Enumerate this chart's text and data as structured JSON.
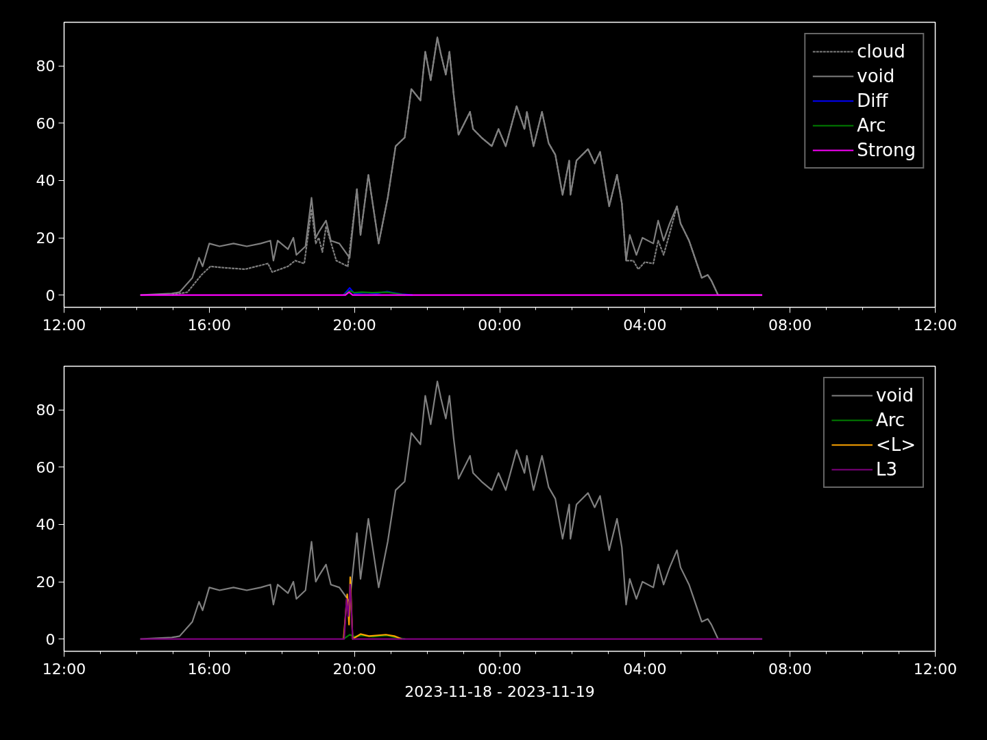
{
  "chart_data": [
    {
      "type": "line",
      "xlim": [
        "2023-11-18T12:00",
        "2023-11-19T12:00"
      ],
      "ylim": [
        -4.3,
        95.3
      ],
      "xticks": [
        {
          "value": "2023-11-18T12:00",
          "label": "12:00"
        },
        {
          "value": "2023-11-18T16:00",
          "label": "16:00"
        },
        {
          "value": "2023-11-18T20:00",
          "label": "20:00"
        },
        {
          "value": "2023-11-19T00:00",
          "label": "00:00"
        },
        {
          "value": "2023-11-19T04:00",
          "label": "04:00"
        },
        {
          "value": "2023-11-19T08:00",
          "label": "08:00"
        },
        {
          "value": "2023-11-19T12:00",
          "label": "12:00"
        }
      ],
      "yticks": [
        0,
        20,
        40,
        60,
        80
      ],
      "legend": "top right",
      "series": [
        {
          "name": "cloud",
          "color": "#808080",
          "line_style": "dashed",
          "x": [
            "2023-11-18T14:58",
            "2023-11-18T15:24",
            "2023-11-18T15:47",
            "2023-11-18T16:02",
            "2023-11-18T16:20",
            "2023-11-18T16:59",
            "2023-11-18T17:37",
            "2023-11-18T17:44",
            "2023-11-18T18:10",
            "2023-11-18T18:22",
            "2023-11-18T18:37",
            "2023-11-18T18:49",
            "2023-11-18T18:56",
            "2023-11-18T19:01",
            "2023-11-18T19:07",
            "2023-11-18T19:13",
            "2023-11-18T19:30",
            "2023-11-18T19:49",
            "2023-11-18T20:04",
            "2023-11-18T20:10",
            "2023-11-18T20:23",
            "2023-11-18T20:40",
            "2023-11-18T20:55",
            "2023-11-18T21:08",
            "2023-11-18T21:23",
            "2023-11-18T21:34",
            "2023-11-18T21:49",
            "2023-11-18T21:57",
            "2023-11-18T22:06",
            "2023-11-18T22:17",
            "2023-11-18T22:23",
            "2023-11-18T22:31",
            "2023-11-18T22:37",
            "2023-11-18T22:44",
            "2023-11-18T22:52",
            "2023-11-18T23:11",
            "2023-11-18T23:16",
            "2023-11-18T23:30",
            "2023-11-18T23:47",
            "2023-11-18T23:58",
            "2023-11-19T00:10",
            "2023-11-19T00:28",
            "2023-11-19T00:41",
            "2023-11-19T00:45",
            "2023-11-19T00:56",
            "2023-11-19T01:10",
            "2023-11-19T01:21",
            "2023-11-19T01:32",
            "2023-11-19T01:44",
            "2023-11-19T01:55",
            "2023-11-19T01:57",
            "2023-11-19T02:07",
            "2023-11-19T02:26",
            "2023-11-19T02:37",
            "2023-11-19T02:46",
            "2023-11-19T03:01",
            "2023-11-19T03:14",
            "2023-11-19T03:22",
            "2023-11-19T03:29",
            "2023-11-19T03:41",
            "2023-11-19T03:49",
            "2023-11-19T04:00",
            "2023-11-19T04:14",
            "2023-11-19T04:22",
            "2023-11-19T04:31",
            "2023-11-19T04:39",
            "2023-11-19T04:53",
            "2023-11-19T04:59",
            "2023-11-19T05:13",
            "2023-11-19T05:34",
            "2023-11-19T05:44",
            "2023-11-19T05:50",
            "2023-11-19T06:01"
          ],
          "values": [
            0,
            1,
            7,
            10,
            9.6,
            9,
            11,
            8,
            10,
            12,
            11,
            30,
            18,
            20,
            15,
            24,
            12,
            10,
            37,
            21,
            42,
            18,
            34,
            52,
            55,
            72,
            68,
            85,
            75,
            90,
            84,
            77,
            85,
            70,
            56,
            64,
            58,
            55,
            52,
            58,
            52,
            66,
            58,
            64,
            52,
            64,
            53,
            49,
            35,
            47,
            35,
            47,
            51,
            46,
            50,
            31,
            42,
            32,
            12,
            12,
            9,
            11.5,
            11,
            19,
            14,
            20,
            31,
            25,
            19,
            6,
            7,
            5,
            0
          ]
        },
        {
          "name": "void",
          "color": "#808080",
          "x": [
            "2023-11-18T14:06",
            "2023-11-18T14:58",
            "2023-11-18T15:11",
            "2023-11-18T15:32",
            "2023-11-18T15:43",
            "2023-11-18T15:49",
            "2023-11-18T16:00",
            "2023-11-18T16:17",
            "2023-11-18T16:40",
            "2023-11-18T17:02",
            "2023-11-18T17:25",
            "2023-11-18T17:41",
            "2023-11-18T17:46",
            "2023-11-18T17:53",
            "2023-11-18T18:10",
            "2023-11-18T18:19",
            "2023-11-18T18:24",
            "2023-11-18T18:39",
            "2023-11-18T18:49",
            "2023-11-18T18:56",
            "2023-11-18T19:01",
            "2023-11-18T19:13",
            "2023-11-18T19:21",
            "2023-11-18T19:35",
            "2023-11-18T19:52",
            "2023-11-18T20:04",
            "2023-11-18T20:10",
            "2023-11-18T20:23",
            "2023-11-18T20:40",
            "2023-11-18T20:55",
            "2023-11-18T21:08",
            "2023-11-18T21:23",
            "2023-11-18T21:34",
            "2023-11-18T21:49",
            "2023-11-18T21:57",
            "2023-11-18T22:06",
            "2023-11-18T22:17",
            "2023-11-18T22:23",
            "2023-11-18T22:31",
            "2023-11-18T22:37",
            "2023-11-18T22:44",
            "2023-11-18T22:52",
            "2023-11-18T23:11",
            "2023-11-18T23:16",
            "2023-11-18T23:30",
            "2023-11-18T23:47",
            "2023-11-18T23:58",
            "2023-11-19T00:10",
            "2023-11-19T00:28",
            "2023-11-19T00:41",
            "2023-11-19T00:45",
            "2023-11-19T00:56",
            "2023-11-19T01:10",
            "2023-11-19T01:21",
            "2023-11-19T01:32",
            "2023-11-19T01:44",
            "2023-11-19T01:55",
            "2023-11-19T01:57",
            "2023-11-19T02:07",
            "2023-11-19T02:26",
            "2023-11-19T02:37",
            "2023-11-19T02:46",
            "2023-11-19T03:01",
            "2023-11-19T03:14",
            "2023-11-19T03:22",
            "2023-11-19T03:29",
            "2023-11-19T03:35",
            "2023-11-19T03:46",
            "2023-11-19T03:56",
            "2023-11-19T04:14",
            "2023-11-19T04:22",
            "2023-11-19T04:31",
            "2023-11-19T04:41",
            "2023-11-19T04:53",
            "2023-11-19T04:59",
            "2023-11-19T05:13",
            "2023-11-19T05:34",
            "2023-11-19T05:44",
            "2023-11-19T05:50",
            "2023-11-19T06:01",
            "2023-11-19T07:14"
          ],
          "values": [
            0,
            0.5,
            1,
            6,
            13,
            10,
            18,
            17,
            18,
            17,
            18,
            19,
            12,
            19,
            16,
            20,
            14,
            17,
            34,
            20,
            22,
            26,
            19,
            18,
            13,
            37,
            21,
            42,
            18,
            34,
            52,
            55,
            72,
            68,
            85,
            75,
            90,
            84,
            77,
            85,
            70,
            56,
            64,
            58,
            55,
            52,
            58,
            52,
            66,
            58,
            64,
            52,
            64,
            53,
            49,
            35,
            47,
            35,
            47,
            51,
            46,
            50,
            31,
            42,
            32,
            12,
            21,
            14,
            20,
            18,
            26,
            19,
            25,
            31,
            25,
            19,
            6,
            7,
            5,
            0,
            0
          ]
        },
        {
          "name": "Diff",
          "color": "#0000ff",
          "x": [
            "2023-11-18T19:42",
            "2023-11-18T19:52",
            "2023-11-18T20:00",
            "2023-11-18T20:18",
            "2023-11-18T20:36",
            "2023-11-18T20:54",
            "2023-11-18T21:03",
            "2023-11-18T21:18",
            "2023-11-18T21:36"
          ],
          "values": [
            0,
            2.5,
            0.5,
            0.8,
            0.5,
            1.2,
            0.8,
            0.3,
            0
          ]
        },
        {
          "name": "Arc",
          "color": "#008000",
          "x": [
            "2023-11-18T19:42",
            "2023-11-18T19:52",
            "2023-11-18T20:00",
            "2023-11-18T20:12",
            "2023-11-18T20:30",
            "2023-11-18T20:54",
            "2023-11-18T21:06",
            "2023-11-18T21:24"
          ],
          "values": [
            0,
            1.5,
            0.8,
            1,
            0.8,
            1,
            0.6,
            0
          ]
        },
        {
          "name": "Strong",
          "color": "#ff00ff",
          "x": [
            "2023-11-18T14:06",
            "2023-11-18T19:45",
            "2023-11-18T19:51",
            "2023-11-18T19:57",
            "2023-11-19T07:14"
          ],
          "values": [
            0,
            0,
            1,
            0,
            0
          ]
        }
      ]
    },
    {
      "type": "line",
      "xlim": [
        "2023-11-18T12:00",
        "2023-11-19T12:00"
      ],
      "ylim": [
        -4.3,
        95.3
      ],
      "xlabel": "2023-11-18 - 2023-11-19",
      "xticks": [
        {
          "value": "2023-11-18T12:00",
          "label": "12:00"
        },
        {
          "value": "2023-11-18T16:00",
          "label": "16:00"
        },
        {
          "value": "2023-11-18T20:00",
          "label": "20:00"
        },
        {
          "value": "2023-11-19T00:00",
          "label": "00:00"
        },
        {
          "value": "2023-11-19T04:00",
          "label": "04:00"
        },
        {
          "value": "2023-11-19T08:00",
          "label": "08:00"
        },
        {
          "value": "2023-11-19T12:00",
          "label": "12:00"
        }
      ],
      "yticks": [
        0,
        20,
        40,
        60,
        80
      ],
      "legend": "top right",
      "series": [
        {
          "name": "void",
          "color": "#808080",
          "x": [
            "2023-11-18T14:06",
            "2023-11-18T14:58",
            "2023-11-18T15:11",
            "2023-11-18T15:32",
            "2023-11-18T15:43",
            "2023-11-18T15:49",
            "2023-11-18T16:00",
            "2023-11-18T16:17",
            "2023-11-18T16:40",
            "2023-11-18T17:02",
            "2023-11-18T17:25",
            "2023-11-18T17:41",
            "2023-11-18T17:46",
            "2023-11-18T17:53",
            "2023-11-18T18:10",
            "2023-11-18T18:19",
            "2023-11-18T18:24",
            "2023-11-18T18:39",
            "2023-11-18T18:49",
            "2023-11-18T18:56",
            "2023-11-18T19:01",
            "2023-11-18T19:13",
            "2023-11-18T19:21",
            "2023-11-18T19:35",
            "2023-11-18T19:52",
            "2023-11-18T20:04",
            "2023-11-18T20:10",
            "2023-11-18T20:23",
            "2023-11-18T20:40",
            "2023-11-18T20:55",
            "2023-11-18T21:08",
            "2023-11-18T21:23",
            "2023-11-18T21:34",
            "2023-11-18T21:49",
            "2023-11-18T21:57",
            "2023-11-18T22:06",
            "2023-11-18T22:17",
            "2023-11-18T22:23",
            "2023-11-18T22:31",
            "2023-11-18T22:37",
            "2023-11-18T22:44",
            "2023-11-18T22:52",
            "2023-11-18T23:11",
            "2023-11-18T23:16",
            "2023-11-18T23:30",
            "2023-11-18T23:47",
            "2023-11-18T23:58",
            "2023-11-19T00:10",
            "2023-11-19T00:28",
            "2023-11-19T00:41",
            "2023-11-19T00:45",
            "2023-11-19T00:56",
            "2023-11-19T01:10",
            "2023-11-19T01:21",
            "2023-11-19T01:32",
            "2023-11-19T01:44",
            "2023-11-19T01:55",
            "2023-11-19T01:57",
            "2023-11-19T02:07",
            "2023-11-19T02:26",
            "2023-11-19T02:37",
            "2023-11-19T02:46",
            "2023-11-19T03:01",
            "2023-11-19T03:14",
            "2023-11-19T03:22",
            "2023-11-19T03:29",
            "2023-11-19T03:35",
            "2023-11-19T03:46",
            "2023-11-19T03:56",
            "2023-11-19T04:14",
            "2023-11-19T04:22",
            "2023-11-19T04:31",
            "2023-11-19T04:41",
            "2023-11-19T04:53",
            "2023-11-19T04:59",
            "2023-11-19T05:13",
            "2023-11-19T05:34",
            "2023-11-19T05:44",
            "2023-11-19T05:50",
            "2023-11-19T06:01",
            "2023-11-19T07:14"
          ],
          "values": [
            0,
            0.5,
            1,
            6,
            13,
            10,
            18,
            17,
            18,
            17,
            18,
            19,
            12,
            19,
            16,
            20,
            14,
            17,
            34,
            20,
            22,
            26,
            19,
            18,
            13,
            37,
            21,
            42,
            18,
            34,
            52,
            55,
            72,
            68,
            85,
            75,
            90,
            84,
            77,
            85,
            70,
            56,
            64,
            58,
            55,
            52,
            58,
            52,
            66,
            58,
            64,
            52,
            64,
            53,
            49,
            35,
            47,
            35,
            47,
            51,
            46,
            50,
            31,
            42,
            32,
            12,
            21,
            14,
            20,
            18,
            26,
            19,
            25,
            31,
            25,
            19,
            6,
            7,
            5,
            0,
            0
          ]
        },
        {
          "name": "Arc",
          "color": "#008000",
          "x": [
            "2023-11-18T19:42",
            "2023-11-18T19:52",
            "2023-11-18T20:00",
            "2023-11-18T20:12",
            "2023-11-18T20:30",
            "2023-11-18T20:54",
            "2023-11-18T21:06",
            "2023-11-18T21:24"
          ],
          "values": [
            0,
            1.5,
            0.8,
            1.2,
            0.8,
            1.2,
            0.6,
            0
          ]
        },
        {
          "name": "<L>",
          "color": "#ffa500",
          "x": [
            "2023-11-18T19:42",
            "2023-11-18T19:48",
            "2023-11-18T19:51",
            "2023-11-18T19:53",
            "2023-11-18T19:57",
            "2023-11-18T20:10",
            "2023-11-18T20:24",
            "2023-11-18T20:52",
            "2023-11-18T21:06",
            "2023-11-18T21:18"
          ],
          "values": [
            0,
            15.6,
            5,
            21.6,
            0,
            1.7,
            1,
            1.5,
            1,
            0
          ]
        },
        {
          "name": "L3",
          "color": "#800080",
          "x": [
            "2023-11-18T14:06",
            "2023-11-18T19:43",
            "2023-11-18T19:47",
            "2023-11-18T19:50",
            "2023-11-18T19:53",
            "2023-11-18T19:57",
            "2023-11-19T07:14"
          ],
          "values": [
            0,
            0,
            14,
            8,
            19,
            0,
            0
          ]
        }
      ]
    }
  ]
}
